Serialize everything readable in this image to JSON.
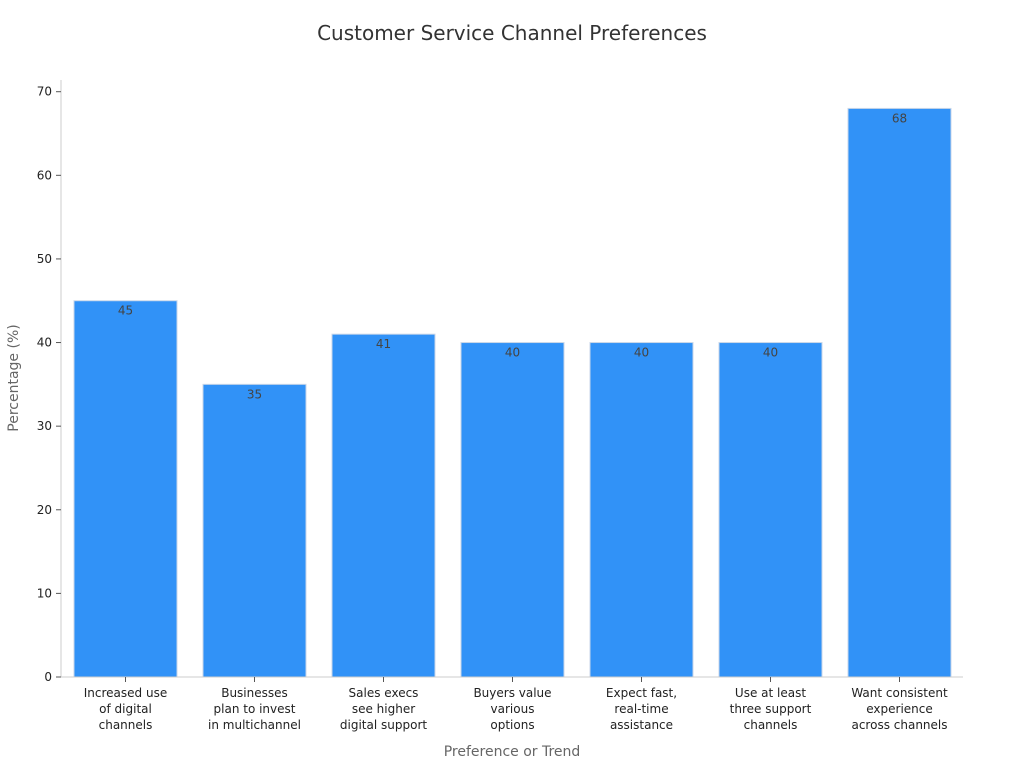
{
  "chart_data": {
    "type": "bar",
    "title": "Customer Service Channel Preferences",
    "xlabel": "Preference or Trend",
    "ylabel": "Percentage (%)",
    "ylim": [
      0,
      71.4
    ],
    "yticks": [
      0,
      10,
      20,
      30,
      40,
      50,
      60,
      70
    ],
    "grid": false,
    "bar_color": "#3192f7",
    "bar_edge_color": "#c8d6e8",
    "categories": [
      [
        "Increased use",
        "of digital",
        "channels"
      ],
      [
        "Businesses",
        "plan to invest",
        "in multichannel"
      ],
      [
        "Sales execs",
        "see higher",
        "digital support"
      ],
      [
        "Buyers value",
        "various",
        "options"
      ],
      [
        "Expect fast,",
        "real-time",
        "assistance"
      ],
      [
        "Use at least",
        "three support",
        "channels"
      ],
      [
        "Want consistent",
        "experience",
        "across channels"
      ]
    ],
    "values": [
      45,
      35,
      41,
      40,
      40,
      40,
      68
    ]
  }
}
